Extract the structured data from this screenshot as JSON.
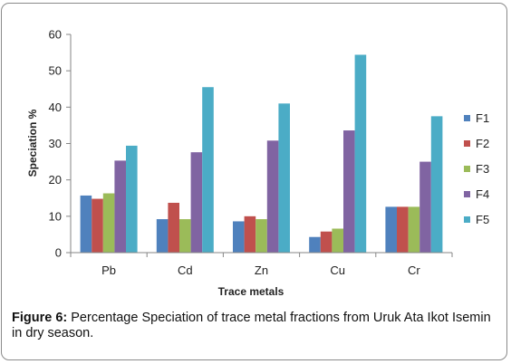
{
  "chart_data": {
    "type": "bar",
    "categories": [
      "Pb",
      "Cd",
      "Zn",
      "Cu",
      "Cr"
    ],
    "series": [
      {
        "name": "F1",
        "color": "#4f81bd",
        "values": [
          15.7,
          9.2,
          8.6,
          4.3,
          12.6
        ]
      },
      {
        "name": "F2",
        "color": "#c0504d",
        "values": [
          14.8,
          13.7,
          10.0,
          5.8,
          12.6
        ]
      },
      {
        "name": "F3",
        "color": "#9bbb59",
        "values": [
          16.3,
          9.2,
          9.2,
          6.6,
          12.6
        ]
      },
      {
        "name": "F4",
        "color": "#8064a2",
        "values": [
          25.3,
          27.6,
          30.8,
          33.6,
          25.0
        ]
      },
      {
        "name": "F5",
        "color": "#4bacc6",
        "values": [
          29.4,
          45.5,
          41.0,
          54.4,
          37.5
        ]
      }
    ],
    "xlabel": "Trace metals",
    "ylabel": "Speciation %",
    "ylim": [
      0,
      60
    ],
    "yticks": [
      0,
      10,
      20,
      30,
      40,
      50,
      60
    ],
    "grid": false,
    "legend_position": "right"
  },
  "caption": {
    "label": "Figure 6:",
    "text": " Percentage Speciation of trace metal fractions from Uruk Ata Ikot Isemin in dry season."
  }
}
